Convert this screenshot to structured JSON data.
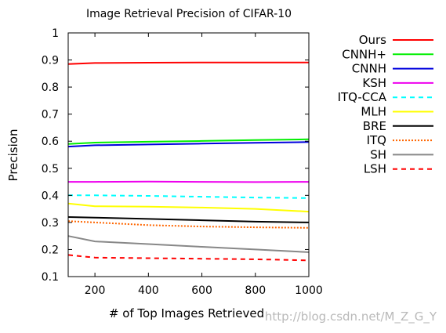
{
  "chart_data": {
    "type": "line",
    "title": "Image Retrieval Precision of CIFAR-10",
    "xlabel": "# of Top Images Retrieved",
    "ylabel": "Precision",
    "xlim": [
      100,
      1000
    ],
    "ylim": [
      0.1,
      1.0
    ],
    "xticks": [
      200,
      400,
      600,
      800,
      1000
    ],
    "xtick_labels": [
      "200",
      "400",
      "600",
      "800",
      "1000"
    ],
    "yticks": [
      0.1,
      0.2,
      0.3,
      0.4,
      0.5,
      0.6,
      0.7,
      0.8,
      0.9,
      1.0
    ],
    "ytick_labels": [
      "0.1",
      "0.2",
      "0.3",
      "0.4",
      "0.5",
      "0.6",
      "0.7",
      "0.8",
      "0.9",
      "1"
    ],
    "grid": false,
    "legend_position": "right-outside",
    "x": [
      100,
      200,
      400,
      600,
      800,
      1000
    ],
    "series": [
      {
        "name": "Ours",
        "color": "#ff0000",
        "dash": "solid",
        "values": [
          0.885,
          0.889,
          0.89,
          0.891,
          0.891,
          0.891
        ]
      },
      {
        "name": "CNNH+",
        "color": "#00ee00",
        "dash": "solid",
        "values": [
          0.59,
          0.595,
          0.598,
          0.601,
          0.604,
          0.607
        ]
      },
      {
        "name": "CNNH",
        "color": "#0000dd",
        "dash": "solid",
        "values": [
          0.58,
          0.585,
          0.588,
          0.591,
          0.594,
          0.597
        ]
      },
      {
        "name": "KSH",
        "color": "#ee00ee",
        "dash": "solid",
        "values": [
          0.45,
          0.45,
          0.451,
          0.45,
          0.449,
          0.45
        ]
      },
      {
        "name": "ITQ-CCA",
        "color": "#00ffff",
        "dash": "dashed",
        "values": [
          0.4,
          0.4,
          0.398,
          0.395,
          0.392,
          0.39
        ]
      },
      {
        "name": "MLH",
        "color": "#ffff00",
        "dash": "solid",
        "values": [
          0.37,
          0.36,
          0.358,
          0.355,
          0.35,
          0.34
        ]
      },
      {
        "name": "BRE",
        "color": "#000000",
        "dash": "solid",
        "values": [
          0.32,
          0.318,
          0.313,
          0.308,
          0.303,
          0.3
        ]
      },
      {
        "name": "ITQ",
        "color": "#ff6600",
        "dash": "dotted",
        "values": [
          0.305,
          0.3,
          0.29,
          0.285,
          0.282,
          0.28
        ]
      },
      {
        "name": "SH",
        "color": "#888888",
        "dash": "solid",
        "values": [
          0.25,
          0.23,
          0.22,
          0.21,
          0.2,
          0.19
        ]
      },
      {
        "name": "LSH",
        "color": "#ff0000",
        "dash": "dashed",
        "values": [
          0.18,
          0.17,
          0.168,
          0.166,
          0.164,
          0.16
        ]
      }
    ]
  },
  "watermark": "http://blog.csdn.net/M_Z_G_Y"
}
